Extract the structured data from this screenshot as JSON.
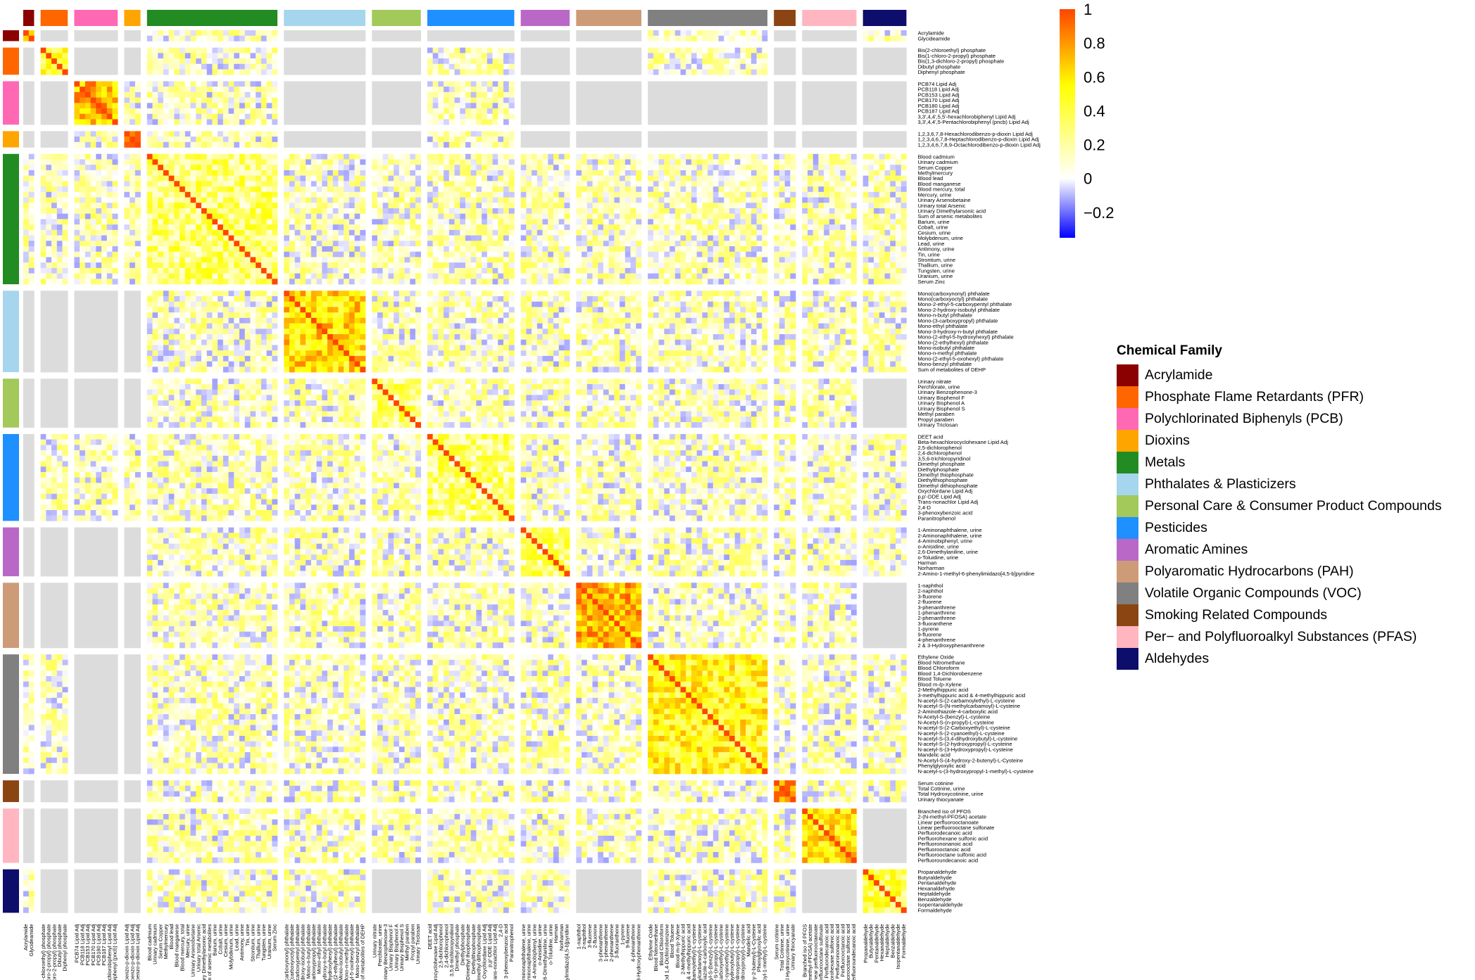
{
  "chart_data": {
    "type": "heatmap",
    "title": "",
    "matrix_kind": "symmetric correlation matrix (rows and columns share the same chemical order)",
    "missing_color": "#dcdcdc",
    "color_scale": {
      "min": -0.35,
      "max": 1,
      "ticks": [
        "1",
        "0.8",
        "0.6",
        "0.4",
        "0.2",
        "0",
        "−0.2"
      ],
      "tick_values": [
        1,
        0.8,
        0.6,
        0.4,
        0.2,
        0,
        -0.2
      ],
      "stops": [
        {
          "value": -0.35,
          "color": "#0000ff"
        },
        {
          "value": 0,
          "color": "#ffffff"
        },
        {
          "value": 0.55,
          "color": "#ffff00"
        },
        {
          "value": 1,
          "color": "#ff4500"
        }
      ]
    },
    "legend": {
      "title": "Chemical Family",
      "position": "right"
    },
    "groups": [
      {
        "name": "Acrylamide",
        "color": "#8b0000",
        "members": [
          "Acrylamide",
          "Glycideamide"
        ]
      },
      {
        "name": "Phosphate Flame Retardants (PFR)",
        "color": "#ff6600",
        "members": [
          "Bis(2-chloroethyl) phosphate",
          "Bis(1-chloro-2-propyl) phosphate",
          "Bis(1,3-dichloro-2-propyl) phosphate",
          "Dibutyl phosphate",
          "Diphenyl phosphate"
        ]
      },
      {
        "name": "Polychlorinated Biphenyls (PCB)",
        "color": "#ff69b4",
        "members": [
          "PCB74 Lipid Adj",
          "PCB118 Lipid Adj",
          "PCB153 Lipid Adj",
          "PCB170 Lipid Adj",
          "PCB180 Lipid Adj",
          "PCB187 Lipid Adj",
          "3,3',4,4',5,5'-hexachlorobiphenyl Lipid Adj",
          "3,3',4,4',5-Pentachlorobiphenyl (pncb) Lipid Adj"
        ]
      },
      {
        "name": "Dioxins",
        "color": "#ffa500",
        "members": [
          "1,2,3,6,7,8-Hexachlorodibenzo-p-dioxin Lipid Adj",
          "1,2,3,4,6,7,8-Heptachlorodibenzo-p-dioxin Lipid Adj",
          "1,2,3,4,6,7,8,9-Octachlorodibenzo-p-dioxin Lipid Adj"
        ]
      },
      {
        "name": "Metals",
        "color": "#228b22",
        "members": [
          "Blood cadmium",
          "Urinary cadmium",
          "Serum Copper",
          "Methylmercury",
          "Blood lead",
          "Blood manganese",
          "Blood mercury, total",
          "Mercury, urine",
          "Urinary Arsenobetaine",
          "Urinary total Arsenic",
          "Urinary Dimethylarsonic acid",
          "Sum of arsenic metabolites",
          "Barium, urine",
          "Cobalt, urine",
          "Cesium, urine",
          "Molybdenum, urine",
          "Lead, urine",
          "Antimony, urine",
          "Tin, urine",
          "Strontium, urine",
          "Thallium, urine",
          "Tungsten, urine",
          "Uranium, urine",
          "Serum Zinc"
        ]
      },
      {
        "name": "Phthalates & Plasticizers",
        "color": "#a6d5ee",
        "members": [
          "Mono(carboxynonyl) phthalate",
          "Mono(carboxyoctyl) phthalate",
          "Mono-2-ethyl-5-carboxypentyl phthalate",
          "Mono-2-hydroxy-isobutyl phthalate",
          "Mono-n-butyl phthalate",
          "Mono-(3-carboxypropyl) phthalate",
          "Mono-ethyl phthalate",
          "Mono-3-hydroxy-n-butyl phthalate",
          "Mono-(2-ethyl-5-hydroxyhexyl) phthalate",
          "Mono-(2-ethylhexyl) phthalate",
          "Mono-isobutyl phthalate",
          "Mono-n-methyl phthalate",
          "Mono-(2-ethyl-5-oxohexyl) phthalate",
          "Mono-benzyl phthalate",
          "Sum of metabolites of DEHP"
        ]
      },
      {
        "name": "Personal Care & Consumer Product Compounds",
        "color": "#a2c95a",
        "members": [
          "Urinary nitrate",
          "Perchlorate, urine",
          "Urinary Benzophenone-3",
          "Urinary Bisphenol F",
          "Urinary Bisphenol A",
          "Urinary Bisphenol S",
          "Methyl paraben",
          "Propyl paraben",
          "Urinary Triclosan"
        ]
      },
      {
        "name": "Pesticides",
        "color": "#1e90ff",
        "members": [
          "DEET acid",
          "Beta-hexachlorocyclohexane Lipid Adj",
          "2,5-dichlorophenol",
          "2,4-dichlorophenol",
          "3,5,6-trichloropyridinol",
          "Dimethyl phosphate",
          "Diethylphosphate",
          "Dimethyl thiophosphate",
          "Diethylthiophosphate",
          "Dimethyl dithiophosphate",
          "Oxychlordane Lipid Adj",
          "p,p'-DDE Lipid Adj",
          "Trans-nonachlor Lipid Adj",
          "2,4-D",
          "3-phenoxybenzoic acid",
          "Paranitrophenol"
        ]
      },
      {
        "name": "Aromatic Amines",
        "color": "#ba68c8",
        "members": [
          "1-Aminonaphthalene, urine",
          "2-Aminonaphthalene, urine",
          "4-Aminobiphenyl, urine",
          "o-Anisidine, urine",
          "2,6-Dimethylaniline, urine",
          "o-Toluidine, urine",
          "Harman",
          "Norharman",
          "2-Amino-1-methyl-6-phenylimidazo[4,5-b]pyridine"
        ]
      },
      {
        "name": "Polyaromatic Hydrocarbons (PAH)",
        "color": "#cd9b77",
        "members": [
          "1-naphthol",
          "2-naphthol",
          "3-fluorene",
          "2-fluorene",
          "3-phenanthrene",
          "1-phenanthrene",
          "2-phenanthrene",
          "3-fluoranthene",
          "1-pyrene",
          "9-fluorene",
          "4-phenanthrene",
          "2 & 3-Hydroxyphenanthrene"
        ]
      },
      {
        "name": "Volatile Organic Compounds (VOC)",
        "color": "#808080",
        "members": [
          "Ethylene Oxide",
          "Blood Nitromethane",
          "Blood Chloroform",
          "Blood 1,4-Dichlorobenzene",
          "Blood Toluene",
          "Blood m-/p-Xylene",
          "2-Methylhippuric acid",
          "3-methylhippuric acid & 4-methylhippuric acid",
          "N-acetyl-S-(2-carbamoylethyl)-L-cysteine",
          "N-acetyl-S-(N-methylcarbamoyl)-L-cysteine",
          "2-Aminothiazole-4-carboxylic acid",
          "N-Acetyl-S-(benzyl)-L-cysteine",
          "N-Acetyl-S-(n-propyl)-L-cysteine",
          "N-acetyl-S-(2-Carboxyethyl)-L-cysteine",
          "N-acetyl-S-(2-cyanoethyl)-L-cysteine",
          "N-acetyl-S-(3,4-dihydroxybutyl)-L-cysteine",
          "N-acetyl-S-(2-hydroxypropyl)-L-cysteine",
          "N-acetyl-S-(3-Hydroxypropyl)-L-cysteine",
          "Mandelic acid",
          "N-Acetyl-S-(4-hydroxy-2-butenyl)-L-Cysteine",
          "Phenylglyoxylic acid",
          "N-acetyl-s-(3-hydroxypropyl-1-methyl)-L-cysteine"
        ]
      },
      {
        "name": "Smoking Related Compounds",
        "color": "#8b4513",
        "members": [
          "Serum cotinine",
          "Total Cotinine, urine",
          "Total Hydroxycotinine, urine",
          "Urinary thiocyanate"
        ]
      },
      {
        "name": "Per− and Polyfluoroalkyl Substances (PFAS)",
        "color": "#ffb6c1",
        "members": [
          "Branched iso of PFOS",
          "2-(N-methyl-PFOSA) acetate",
          "Linear perfluorooctanoate",
          "Linear perfluorooctane sulfonate",
          "Perfluorodecanoic acid",
          "Perfluorohexane sulfonic acid",
          "Perfluorononanoic acid",
          "Perfluorooctanoic acid",
          "Perfluorooctane sulfonic acid",
          "Perfluoroundecanoic acid"
        ]
      },
      {
        "name": "Aldehydes",
        "color": "#0d0d6b",
        "members": [
          "Propanaldehyde",
          "Butyraldehyde",
          "Pentanaldehyde",
          "Hexanaldehyde",
          "Heptaldehyde",
          "Benzaldehyde",
          "Isopentanaldehyde",
          "Formaldehyde"
        ]
      }
    ],
    "block_summary": {
      "description_values_are_typical_correlations_estimated_from_colors": true,
      "diagonal": 1,
      "within_group_typical": {
        "Acrylamide": 0.85,
        "Phosphate Flame Retardants (PFR)": 0.5,
        "Polychlorinated Biphenyls (PCB)": 0.7,
        "Dioxins": 0.8,
        "Metals": 0.3,
        "Phthalates & Plasticizers": 0.6,
        "Personal Care & Consumer Product Compounds": 0.3,
        "Pesticides": 0.3,
        "Aromatic Amines": 0.3,
        "Polyaromatic Hydrocarbons (PAH)": 0.75,
        "Volatile Organic Compounds (VOC)": 0.5,
        "Smoking Related Compounds": 0.9,
        "Per− and Polyfluoroalkyl Substances (PFAS)": 0.6,
        "Aldehydes": 0.35
      },
      "missing_blocks": [
        [
          "Acrylamide",
          "Phosphate Flame Retardants (PFR)"
        ],
        [
          "Acrylamide",
          "Polychlorinated Biphenyls (PCB)"
        ],
        [
          "Acrylamide",
          "Dioxins"
        ],
        [
          "Acrylamide",
          "Phthalates & Plasticizers"
        ],
        [
          "Acrylamide",
          "Personal Care & Consumer Product Compounds"
        ],
        [
          "Acrylamide",
          "Pesticides"
        ],
        [
          "Acrylamide",
          "Aromatic Amines"
        ],
        [
          "Acrylamide",
          "Polyaromatic Hydrocarbons (PAH)"
        ],
        [
          "Acrylamide",
          "Smoking Related Compounds"
        ],
        [
          "Acrylamide",
          "Per− and Polyfluoroalkyl Substances (PFAS)"
        ],
        [
          "Phosphate Flame Retardants (PFR)",
          "Polychlorinated Biphenyls (PCB)"
        ],
        [
          "Phosphate Flame Retardants (PFR)",
          "Dioxins"
        ],
        [
          "Phosphate Flame Retardants (PFR)",
          "Phthalates & Plasticizers"
        ],
        [
          "Phosphate Flame Retardants (PFR)",
          "Personal Care & Consumer Product Compounds"
        ],
        [
          "Phosphate Flame Retardants (PFR)",
          "Aromatic Amines"
        ],
        [
          "Phosphate Flame Retardants (PFR)",
          "Polyaromatic Hydrocarbons (PAH)"
        ],
        [
          "Phosphate Flame Retardants (PFR)",
          "Smoking Related Compounds"
        ],
        [
          "Phosphate Flame Retardants (PFR)",
          "Per− and Polyfluoroalkyl Substances (PFAS)"
        ],
        [
          "Phosphate Flame Retardants (PFR)",
          "Aldehydes"
        ],
        [
          "Polychlorinated Biphenyls (PCB)",
          "Phthalates & Plasticizers"
        ],
        [
          "Polychlorinated Biphenyls (PCB)",
          "Personal Care & Consumer Product Compounds"
        ],
        [
          "Polychlorinated Biphenyls (PCB)",
          "Aromatic Amines"
        ],
        [
          "Polychlorinated Biphenyls (PCB)",
          "Polyaromatic Hydrocarbons (PAH)"
        ],
        [
          "Polychlorinated Biphenyls (PCB)",
          "Volatile Organic Compounds (VOC)"
        ],
        [
          "Polychlorinated Biphenyls (PCB)",
          "Smoking Related Compounds"
        ],
        [
          "Polychlorinated Biphenyls (PCB)",
          "Per− and Polyfluoroalkyl Substances (PFAS)"
        ],
        [
          "Polychlorinated Biphenyls (PCB)",
          "Aldehydes"
        ],
        [
          "Dioxins",
          "Phthalates & Plasticizers"
        ],
        [
          "Dioxins",
          "Personal Care & Consumer Product Compounds"
        ],
        [
          "Dioxins",
          "Aromatic Amines"
        ],
        [
          "Dioxins",
          "Polyaromatic Hydrocarbons (PAH)"
        ],
        [
          "Dioxins",
          "Volatile Organic Compounds (VOC)"
        ],
        [
          "Dioxins",
          "Smoking Related Compounds"
        ],
        [
          "Dioxins",
          "Per− and Polyfluoroalkyl Substances (PFAS)"
        ],
        [
          "Dioxins",
          "Aldehydes"
        ],
        [
          "Personal Care & Consumer Product Compounds",
          "Aldehydes"
        ],
        [
          "Per− and Polyfluoroalkyl Substances (PFAS)",
          "Aldehydes"
        ],
        [
          "Polyaromatic Hydrocarbons (PAH)",
          "Aldehydes"
        ]
      ]
    }
  }
}
